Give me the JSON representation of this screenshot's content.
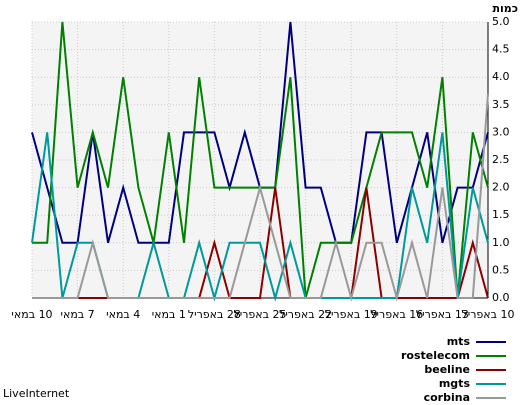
{
  "chart_data": {
    "type": "line",
    "y_axis_label": "כמות",
    "categories": [
      "10 במאי",
      null,
      null,
      "7 במאי",
      null,
      null,
      "4 במאי",
      null,
      null,
      "1 במאי",
      null,
      null,
      "28 באפריל",
      null,
      null,
      "25 באפריל",
      null,
      null,
      "22 באפריל",
      null,
      null,
      "19 באפריל",
      null,
      null,
      "16 באפריל",
      null,
      null,
      "13 באפריל",
      null,
      null,
      "10 באפריל"
    ],
    "series": [
      {
        "name": "mts",
        "color": "#00007f",
        "values": [
          3,
          2,
          1,
          1,
          3,
          1,
          2,
          1,
          1,
          1,
          3,
          3,
          3,
          2,
          3,
          2,
          2,
          5,
          2,
          2,
          1,
          1,
          3,
          3,
          1,
          2,
          3,
          1,
          2,
          2,
          3
        ]
      },
      {
        "name": "rostelecom",
        "color": "#008000",
        "values": [
          1,
          1,
          5,
          2,
          3,
          2,
          4,
          2,
          1,
          3,
          1,
          4,
          2,
          2,
          2,
          2,
          2,
          4,
          0,
          1,
          1,
          1,
          2,
          3,
          3,
          3,
          2,
          4,
          0,
          3,
          2
        ]
      },
      {
        "name": "beeline",
        "color": "#8b0000",
        "values": [
          0,
          0,
          0,
          0,
          0,
          0,
          0,
          0,
          0,
          0,
          0,
          0,
          1,
          0,
          0,
          0,
          2,
          0,
          0,
          0,
          0,
          0,
          2,
          0,
          0,
          0,
          0,
          0,
          0,
          1,
          0
        ]
      },
      {
        "name": "mgts",
        "color": "#009999",
        "values": [
          1,
          3,
          0,
          1,
          1,
          0,
          0,
          0,
          1,
          0,
          0,
          1,
          0,
          1,
          1,
          1,
          0,
          1,
          0,
          0,
          0,
          0,
          0,
          0,
          0,
          2,
          1,
          3,
          0,
          2,
          1
        ]
      },
      {
        "name": "corbina",
        "color": "#999999",
        "values": [
          0,
          0,
          0,
          0,
          1,
          0,
          0,
          0,
          0,
          0,
          0,
          0,
          0,
          0,
          1,
          2,
          1,
          0,
          0,
          0,
          1,
          0,
          1,
          1,
          0,
          1,
          0,
          2,
          0,
          0,
          3.7
        ]
      }
    ],
    "ylim": [
      0,
      5
    ],
    "yticks": [
      {
        "value": 0,
        "label": "0.0"
      },
      {
        "value": 0.5,
        "label": "0.5"
      },
      {
        "value": 1,
        "label": "1.0"
      },
      {
        "value": 1.5,
        "label": "1.5"
      },
      {
        "value": 2,
        "label": "2.0"
      },
      {
        "value": 2.5,
        "label": "2.5"
      },
      {
        "value": 3,
        "label": "3.0"
      },
      {
        "value": 3.5,
        "label": "3.5"
      },
      {
        "value": 4,
        "label": "4.0"
      },
      {
        "value": 4.5,
        "label": "4.5"
      },
      {
        "value": 5,
        "label": "5.0"
      }
    ],
    "grid": true,
    "legend": "bottom-right",
    "footer": "LiveInternet"
  }
}
